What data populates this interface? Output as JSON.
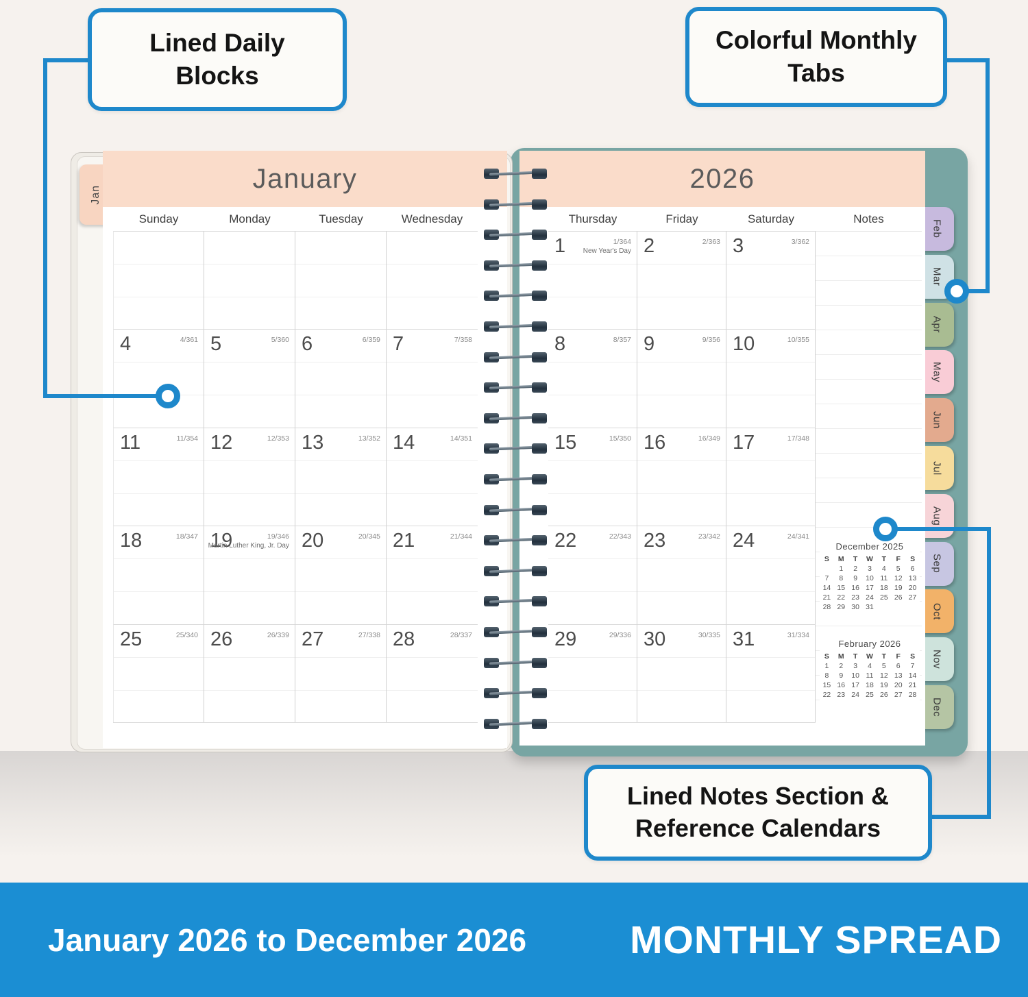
{
  "colors": {
    "accent": "#1e88cb",
    "banner": "#1b8ed3"
  },
  "callouts": {
    "daily_blocks": "Lined Daily Blocks",
    "monthly_tabs": "Colorful Monthly Tabs",
    "notes_section": "Lined Notes Section & Reference Calendars"
  },
  "banner": {
    "left": "January 2026 to December 2026",
    "right": "MONTHLY SPREAD"
  },
  "planner": {
    "left_tab": "Jan",
    "month_title": "January",
    "year_title": "2026",
    "left_day_headers": [
      "Sunday",
      "Monday",
      "Tuesday",
      "Wednesday"
    ],
    "right_day_headers": [
      "Thursday",
      "Friday",
      "Saturday",
      "Notes"
    ],
    "left_weeks": [
      [
        null,
        null,
        null,
        null
      ],
      [
        {
          "d": "4",
          "j": "4/361"
        },
        {
          "d": "5",
          "j": "5/360"
        },
        {
          "d": "6",
          "j": "6/359"
        },
        {
          "d": "7",
          "j": "7/358"
        }
      ],
      [
        {
          "d": "11",
          "j": "11/354"
        },
        {
          "d": "12",
          "j": "12/353"
        },
        {
          "d": "13",
          "j": "13/352"
        },
        {
          "d": "14",
          "j": "14/351"
        }
      ],
      [
        {
          "d": "18",
          "j": "18/347"
        },
        {
          "d": "19",
          "j": "19/346",
          "n": "Martin Luther King, Jr. Day"
        },
        {
          "d": "20",
          "j": "20/345"
        },
        {
          "d": "21",
          "j": "21/344"
        }
      ],
      [
        {
          "d": "25",
          "j": "25/340"
        },
        {
          "d": "26",
          "j": "26/339"
        },
        {
          "d": "27",
          "j": "27/338"
        },
        {
          "d": "28",
          "j": "28/337"
        }
      ]
    ],
    "right_weeks": [
      [
        {
          "d": "1",
          "j": "1/364",
          "n": "New Year's Day"
        },
        {
          "d": "2",
          "j": "2/363"
        },
        {
          "d": "3",
          "j": "3/362"
        }
      ],
      [
        {
          "d": "8",
          "j": "8/357"
        },
        {
          "d": "9",
          "j": "9/356"
        },
        {
          "d": "10",
          "j": "10/355"
        }
      ],
      [
        {
          "d": "15",
          "j": "15/350"
        },
        {
          "d": "16",
          "j": "16/349"
        },
        {
          "d": "17",
          "j": "17/348"
        }
      ],
      [
        {
          "d": "22",
          "j": "22/343"
        },
        {
          "d": "23",
          "j": "23/342"
        },
        {
          "d": "24",
          "j": "24/341"
        }
      ],
      [
        {
          "d": "29",
          "j": "29/336"
        },
        {
          "d": "30",
          "j": "30/335"
        },
        {
          "d": "31",
          "j": "31/334"
        }
      ]
    ],
    "mini_calendars": [
      {
        "title": "December 2025",
        "dow": [
          "S",
          "M",
          "T",
          "W",
          "T",
          "F",
          "S"
        ],
        "weeks": [
          [
            "",
            "1",
            "2",
            "3",
            "4",
            "5",
            "6"
          ],
          [
            "7",
            "8",
            "9",
            "10",
            "11",
            "12",
            "13"
          ],
          [
            "14",
            "15",
            "16",
            "17",
            "18",
            "19",
            "20"
          ],
          [
            "21",
            "22",
            "23",
            "24",
            "25",
            "26",
            "27"
          ],
          [
            "28",
            "29",
            "30",
            "31",
            "",
            "",
            ""
          ]
        ]
      },
      {
        "title": "February 2026",
        "dow": [
          "S",
          "M",
          "T",
          "W",
          "T",
          "F",
          "S"
        ],
        "weeks": [
          [
            "1",
            "2",
            "3",
            "4",
            "5",
            "6",
            "7"
          ],
          [
            "8",
            "9",
            "10",
            "11",
            "12",
            "13",
            "14"
          ],
          [
            "15",
            "16",
            "17",
            "18",
            "19",
            "20",
            "21"
          ],
          [
            "22",
            "23",
            "24",
            "25",
            "26",
            "27",
            "28"
          ]
        ]
      }
    ],
    "tabs": [
      {
        "label": "Feb",
        "color": "#c7bade"
      },
      {
        "label": "Mar",
        "color": "#cfe1e5"
      },
      {
        "label": "Apr",
        "color": "#a9bc92"
      },
      {
        "label": "May",
        "color": "#f9ccd6"
      },
      {
        "label": "Jun",
        "color": "#e3aa8e"
      },
      {
        "label": "Jul",
        "color": "#f6dc9c"
      },
      {
        "label": "Aug",
        "color": "#f7d4d8"
      },
      {
        "label": "Sep",
        "color": "#c7c6e2"
      },
      {
        "label": "Oct",
        "color": "#f2b269"
      },
      {
        "label": "Nov",
        "color": "#cee3dc"
      },
      {
        "label": "Dec",
        "color": "#b5c5a4"
      }
    ],
    "colors": {
      "header_band": "#fadcca",
      "cover": "#78a5a3",
      "jan_tab": "#f8d5c1"
    }
  }
}
